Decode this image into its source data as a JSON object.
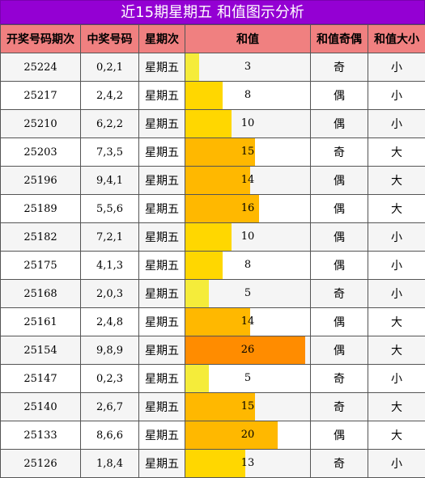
{
  "title": "近15期星期五 和值图示分析",
  "headers": [
    "开奖号码期次",
    "中奖号码",
    "星期次",
    "和值",
    "和值奇偶",
    "和值大小"
  ],
  "max_sum": 27,
  "colors": {
    "header_bg": "#f08080",
    "title_bg": "#9400d3",
    "bar_low": "#f5ec3a",
    "bar_mid": "#ffd700",
    "bar_high": "#ffb800",
    "bar_top": "#ff8c00"
  },
  "rows": [
    {
      "issue": "25224",
      "numbers": "0,2,1",
      "weekday": "星期五",
      "sum": 3,
      "parity": "奇",
      "size": "小"
    },
    {
      "issue": "25217",
      "numbers": "2,4,2",
      "weekday": "星期五",
      "sum": 8,
      "parity": "偶",
      "size": "小"
    },
    {
      "issue": "25210",
      "numbers": "6,2,2",
      "weekday": "星期五",
      "sum": 10,
      "parity": "偶",
      "size": "小"
    },
    {
      "issue": "25203",
      "numbers": "7,3,5",
      "weekday": "星期五",
      "sum": 15,
      "parity": "奇",
      "size": "大"
    },
    {
      "issue": "25196",
      "numbers": "9,4,1",
      "weekday": "星期五",
      "sum": 14,
      "parity": "偶",
      "size": "大"
    },
    {
      "issue": "25189",
      "numbers": "5,5,6",
      "weekday": "星期五",
      "sum": 16,
      "parity": "偶",
      "size": "大"
    },
    {
      "issue": "25182",
      "numbers": "7,2,1",
      "weekday": "星期五",
      "sum": 10,
      "parity": "偶",
      "size": "小"
    },
    {
      "issue": "25175",
      "numbers": "4,1,3",
      "weekday": "星期五",
      "sum": 8,
      "parity": "偶",
      "size": "小"
    },
    {
      "issue": "25168",
      "numbers": "2,0,3",
      "weekday": "星期五",
      "sum": 5,
      "parity": "奇",
      "size": "小"
    },
    {
      "issue": "25161",
      "numbers": "2,4,8",
      "weekday": "星期五",
      "sum": 14,
      "parity": "偶",
      "size": "大"
    },
    {
      "issue": "25154",
      "numbers": "9,8,9",
      "weekday": "星期五",
      "sum": 26,
      "parity": "偶",
      "size": "大"
    },
    {
      "issue": "25147",
      "numbers": "0,2,3",
      "weekday": "星期五",
      "sum": 5,
      "parity": "奇",
      "size": "小"
    },
    {
      "issue": "25140",
      "numbers": "2,6,7",
      "weekday": "星期五",
      "sum": 15,
      "parity": "奇",
      "size": "大"
    },
    {
      "issue": "25133",
      "numbers": "8,6,6",
      "weekday": "星期五",
      "sum": 20,
      "parity": "偶",
      "size": "大"
    },
    {
      "issue": "25126",
      "numbers": "1,8,4",
      "weekday": "星期五",
      "sum": 13,
      "parity": "奇",
      "size": "小"
    }
  ]
}
